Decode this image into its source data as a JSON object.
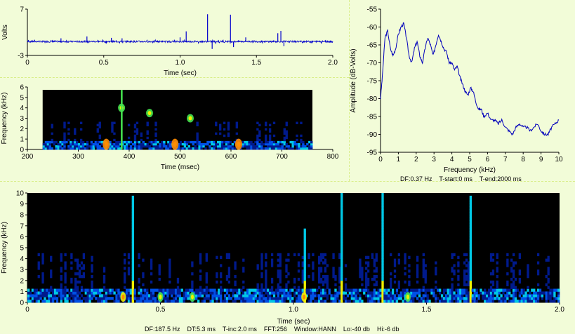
{
  "colors": {
    "background": "#f2fcd8",
    "waveform": "#0000cc",
    "spectrum": "#0000bb",
    "divider": "#d9ee8a",
    "colormap": [
      "#000000",
      "#001a8c",
      "#0050e6",
      "#00c8e6",
      "#46e650",
      "#f0f000",
      "#ff8c00"
    ]
  },
  "chart_data": [
    {
      "id": "waveform",
      "type": "line",
      "xlabel": "Time (sec)",
      "ylabel": "Volts",
      "xlim": [
        0,
        2.0
      ],
      "ylim": [
        -3,
        7
      ],
      "x_ticks": [
        "0",
        "0.5",
        "1.0",
        "1.5",
        "2.0"
      ],
      "y_ticks": [
        "7",
        "-3"
      ],
      "baseline": 0,
      "spikes": [
        {
          "x": 0.22,
          "y": 0.7
        },
        {
          "x": 0.39,
          "y": 1.1
        },
        {
          "x": 0.55,
          "y": 0.8
        },
        {
          "x": 0.62,
          "y": 0.7
        },
        {
          "x": 1.0,
          "y": 0.9
        },
        {
          "x": 1.04,
          "y": 2.2
        },
        {
          "x": 1.18,
          "y": 5.9
        },
        {
          "x": 1.21,
          "y": -1.6
        },
        {
          "x": 1.33,
          "y": 5.8
        },
        {
          "x": 1.35,
          "y": -1.2
        },
        {
          "x": 1.43,
          "y": 0.9
        },
        {
          "x": 1.64,
          "y": 1.8
        },
        {
          "x": 1.66,
          "y": 2.3
        },
        {
          "x": 1.68,
          "y": -1.0
        }
      ]
    },
    {
      "id": "spectrogram-zoom",
      "type": "heatmap",
      "xlabel": "Time (msec)",
      "ylabel": "Frequency (kHz)",
      "xlim": [
        200,
        800
      ],
      "ylim": [
        0,
        6
      ],
      "data_xlim": [
        230,
        760
      ],
      "x_ticks": [
        "200",
        "300",
        "400",
        "500",
        "600",
        "700",
        "800"
      ],
      "y_ticks": [
        "0",
        "1",
        "2",
        "3",
        "4",
        "5",
        "6"
      ],
      "hot_spots": [
        {
          "x": 355,
          "y": 0.5,
          "level": 6
        },
        {
          "x": 490,
          "y": 0.5,
          "level": 6
        },
        {
          "x": 615,
          "y": 0.5,
          "level": 6
        },
        {
          "x": 385,
          "y": 4.0,
          "level": 4
        },
        {
          "x": 440,
          "y": 3.5,
          "level": 4
        },
        {
          "x": 520,
          "y": 3.0,
          "level": 4
        }
      ]
    },
    {
      "id": "spectrum",
      "type": "line",
      "xlabel": "Frequency (kHz)",
      "ylabel": "Amplitude (dB-Volts)",
      "xlim": [
        0,
        10
      ],
      "ylim": [
        -95,
        -55
      ],
      "x_ticks": [
        "0",
        "1",
        "2",
        "3",
        "4",
        "5",
        "6",
        "7",
        "8",
        "9",
        "10"
      ],
      "y_ticks": [
        "-55",
        "-60",
        "-65",
        "-70",
        "-75",
        "-80",
        "-85",
        "-90",
        "-95"
      ],
      "x": [
        0,
        0.1,
        0.25,
        0.4,
        0.55,
        0.7,
        0.85,
        1.0,
        1.15,
        1.3,
        1.45,
        1.6,
        1.75,
        1.9,
        2.05,
        2.2,
        2.35,
        2.5,
        2.65,
        2.8,
        2.95,
        3.1,
        3.25,
        3.4,
        3.55,
        3.7,
        3.85,
        4.0,
        4.15,
        4.3,
        4.45,
        4.6,
        4.75,
        4.9,
        5.05,
        5.2,
        5.35,
        5.5,
        5.65,
        5.8,
        6.0,
        6.2,
        6.4,
        6.6,
        6.8,
        7.0,
        7.2,
        7.4,
        7.6,
        7.8,
        8.0,
        8.2,
        8.4,
        8.6,
        8.8,
        9.0,
        9.2,
        9.4,
        9.6,
        9.8,
        10.0
      ],
      "y": [
        -80,
        -74,
        -63,
        -61,
        -66,
        -68,
        -66,
        -62,
        -60,
        -59,
        -63,
        -68,
        -70,
        -66,
        -64,
        -68,
        -70,
        -66,
        -63,
        -65,
        -68,
        -65,
        -62,
        -64,
        -66,
        -67,
        -70,
        -70,
        -72,
        -71,
        -74,
        -76,
        -78,
        -79,
        -77,
        -78,
        -81,
        -83,
        -83,
        -85,
        -84,
        -86,
        -86,
        -87,
        -86,
        -88,
        -89,
        -90,
        -88,
        -87,
        -88,
        -88,
        -89,
        -88,
        -87,
        -89,
        -90,
        -90,
        -88,
        -87,
        -86
      ]
    },
    {
      "id": "spectrogram-full",
      "type": "heatmap",
      "xlabel": "Time (sec)",
      "ylabel": "Frequency (kHz)",
      "xlim": [
        0,
        2.0
      ],
      "ylim": [
        0,
        10
      ],
      "x_ticks": [
        "0",
        "0.5",
        "1.0",
        "1.5",
        "2.0"
      ],
      "y_ticks": [
        "0",
        "1",
        "2",
        "3",
        "4",
        "5",
        "6",
        "7",
        "8",
        "9",
        "10"
      ],
      "vertical_streaks": [
        {
          "x": 0.39,
          "top": 9.5
        },
        {
          "x": 1.04,
          "top": 6.5
        },
        {
          "x": 1.18,
          "top": 10
        },
        {
          "x": 1.33,
          "top": 10
        },
        {
          "x": 1.66,
          "top": 9.5
        }
      ],
      "hot_spots": [
        {
          "x": 0.36,
          "y": 0.5,
          "level": 5
        },
        {
          "x": 0.5,
          "y": 0.5,
          "level": 4
        },
        {
          "x": 0.62,
          "y": 0.5,
          "level": 4
        },
        {
          "x": 1.04,
          "y": 0.5,
          "level": 5
        },
        {
          "x": 1.43,
          "y": 0.5,
          "level": 4
        }
      ]
    }
  ],
  "footers": {
    "spectrum": "DF:0.37 Hz    T-start:0 ms    T-end:2000 ms",
    "spectrogram_full": "DF:187.5 Hz    DT:5.3 ms    T-inc:2.0 ms    FFT:256    Window:HANN    Lo:-40 db    Hi:-6 db"
  }
}
